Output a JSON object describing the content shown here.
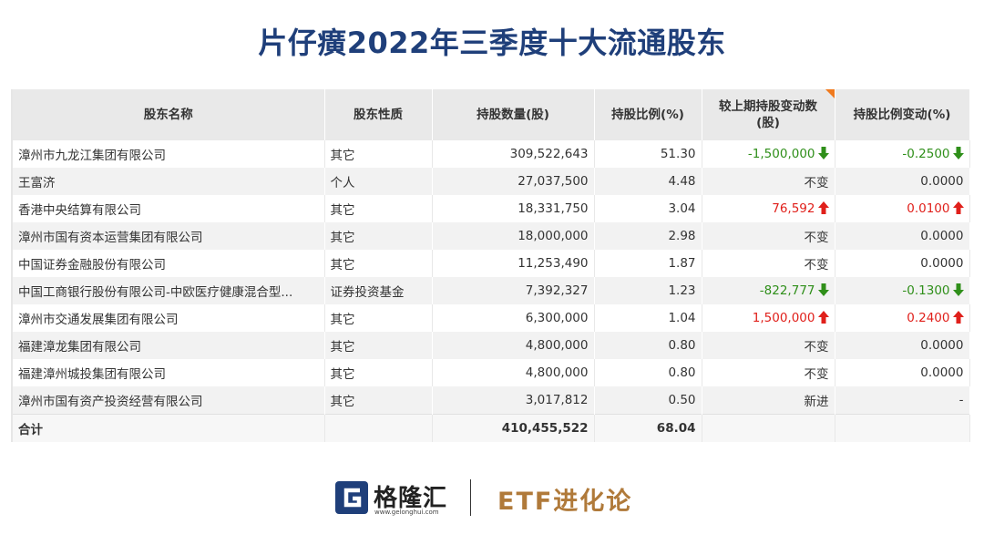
{
  "title": "片仔癀2022年三季度十大流通股东",
  "columns": {
    "name": "股东名称",
    "type": "股东性质",
    "shares": "持股数量(股)",
    "ratio": "持股比例(%)",
    "change_line1": "较上期持股变动数",
    "change_line2": "(股)",
    "ratio_change": "持股比例变动(%)"
  },
  "rows": [
    {
      "name": "漳州市九龙江集团有限公司",
      "type": "其它",
      "shares": "309,522,643",
      "ratio": "51.30",
      "change": "-1,500,000",
      "change_dir": "down",
      "ratio_change": "-0.2500",
      "ratio_dir": "down"
    },
    {
      "name": "王富济",
      "type": "个人",
      "shares": "27,037,500",
      "ratio": "4.48",
      "change": "不变",
      "change_dir": "none",
      "ratio_change": "0.0000",
      "ratio_dir": "none"
    },
    {
      "name": "香港中央结算有限公司",
      "type": "其它",
      "shares": "18,331,750",
      "ratio": "3.04",
      "change": "76,592",
      "change_dir": "up",
      "ratio_change": "0.0100",
      "ratio_dir": "up"
    },
    {
      "name": "漳州市国有资本运营集团有限公司",
      "type": "其它",
      "shares": "18,000,000",
      "ratio": "2.98",
      "change": "不变",
      "change_dir": "none",
      "ratio_change": "0.0000",
      "ratio_dir": "none"
    },
    {
      "name": "中国证券金融股份有限公司",
      "type": "其它",
      "shares": "11,253,490",
      "ratio": "1.87",
      "change": "不变",
      "change_dir": "none",
      "ratio_change": "0.0000",
      "ratio_dir": "none"
    },
    {
      "name": "中国工商银行股份有限公司-中欧医疗健康混合型...",
      "type": "证券投资基金",
      "shares": "7,392,327",
      "ratio": "1.23",
      "change": "-822,777",
      "change_dir": "down",
      "ratio_change": "-0.1300",
      "ratio_dir": "down"
    },
    {
      "name": "漳州市交通发展集团有限公司",
      "type": "其它",
      "shares": "6,300,000",
      "ratio": "1.04",
      "change": "1,500,000",
      "change_dir": "up",
      "ratio_change": "0.2400",
      "ratio_dir": "up"
    },
    {
      "name": "福建漳龙集团有限公司",
      "type": "其它",
      "shares": "4,800,000",
      "ratio": "0.80",
      "change": "不变",
      "change_dir": "none",
      "ratio_change": "0.0000",
      "ratio_dir": "none"
    },
    {
      "name": "福建漳州城投集团有限公司",
      "type": "其它",
      "shares": "4,800,000",
      "ratio": "0.80",
      "change": "不变",
      "change_dir": "none",
      "ratio_change": "0.0000",
      "ratio_dir": "none"
    },
    {
      "name": "漳州市国有资产投资经营有限公司",
      "type": "其它",
      "shares": "3,017,812",
      "ratio": "0.50",
      "change": "新进",
      "change_dir": "none",
      "ratio_change": "-",
      "ratio_dir": "none"
    }
  ],
  "total": {
    "label": "合计",
    "shares": "410,455,522",
    "ratio": "68.04"
  },
  "colors": {
    "title": "#1f3f7a",
    "up": "#e0201b",
    "down": "#2f8f1a",
    "brand": "#b07a3a",
    "logo": "#1f3f7a"
  },
  "footer": {
    "logo_icon": "gelonghui-logo-icon",
    "logo_name": "格隆汇",
    "logo_url": "www.gelonghui.com",
    "brand": "ETF进化论"
  }
}
